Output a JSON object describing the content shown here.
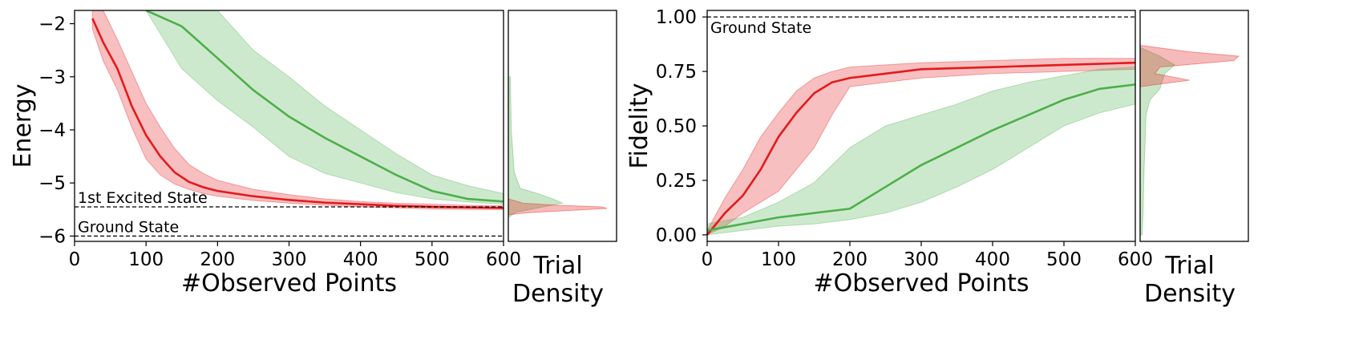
{
  "chart_data": [
    {
      "type": "line",
      "panel": "energy",
      "xlabel": "#Observed Points",
      "ylabel": "Energy",
      "xlim": [
        0,
        600
      ],
      "ylim": [
        -6.1,
        -1.75
      ],
      "xticks": [
        0,
        100,
        200,
        300,
        400,
        500,
        600
      ],
      "xtick_labels": [
        "0",
        "100",
        "200",
        "300",
        "400",
        "500",
        "600"
      ],
      "yticks": [
        -2,
        -3,
        -4,
        -5,
        -6
      ],
      "ytick_labels": [
        "−2",
        "−3",
        "−4",
        "−5",
        "−6"
      ],
      "reference_lines": [
        {
          "label": "1st Excited State",
          "y": -5.45
        },
        {
          "label": "Ground State",
          "y": -6.0
        }
      ],
      "series": [
        {
          "name": "red",
          "color": "#e41a1c",
          "x": [
            25,
            40,
            60,
            80,
            100,
            120,
            140,
            160,
            180,
            200,
            250,
            300,
            350,
            400,
            450,
            500,
            550,
            600
          ],
          "mean": [
            -1.9,
            -2.35,
            -2.85,
            -3.55,
            -4.1,
            -4.5,
            -4.8,
            -4.98,
            -5.08,
            -5.15,
            -5.25,
            -5.32,
            -5.37,
            -5.4,
            -5.43,
            -5.45,
            -5.46,
            -5.47
          ],
          "lower": [
            -2.1,
            -2.7,
            -3.25,
            -3.95,
            -4.55,
            -4.85,
            -5.02,
            -5.12,
            -5.2,
            -5.25,
            -5.33,
            -5.38,
            -5.42,
            -5.45,
            -5.47,
            -5.49,
            -5.5,
            -5.5
          ],
          "upper": [
            -1.75,
            -1.75,
            -2.3,
            -2.9,
            -3.5,
            -3.95,
            -4.35,
            -4.65,
            -4.82,
            -4.95,
            -5.12,
            -5.22,
            -5.3,
            -5.35,
            -5.38,
            -5.4,
            -5.42,
            -5.43
          ]
        },
        {
          "name": "green",
          "color": "#4daf4a",
          "x": [
            100,
            150,
            200,
            250,
            300,
            350,
            400,
            450,
            500,
            550,
            600
          ],
          "mean": [
            -1.75,
            -2.05,
            -2.65,
            -3.25,
            -3.75,
            -4.15,
            -4.5,
            -4.85,
            -5.15,
            -5.3,
            -5.35
          ],
          "lower": [
            -1.75,
            -2.85,
            -3.45,
            -3.95,
            -4.5,
            -4.82,
            -5.0,
            -5.18,
            -5.3,
            -5.36,
            -5.4
          ],
          "upper": [
            -1.75,
            -1.75,
            -1.75,
            -2.5,
            -3.0,
            -3.55,
            -4.0,
            -4.45,
            -4.85,
            -5.05,
            -5.2
          ]
        }
      ],
      "density": {
        "label_line1": "Trial",
        "label_line2": "Density",
        "red": {
          "y": [
            -5.3,
            -5.38,
            -5.42,
            -5.45,
            -5.48,
            -5.52,
            -5.56,
            -5.6
          ],
          "d": [
            0.0,
            0.15,
            0.5,
            0.95,
            1.0,
            0.6,
            0.2,
            0.0
          ]
        },
        "green": {
          "y": [
            -3.0,
            -4.0,
            -4.8,
            -5.1,
            -5.2,
            -5.3,
            -5.38,
            -5.45,
            -5.55,
            -5.65
          ],
          "d": [
            0.02,
            0.03,
            0.06,
            0.12,
            0.3,
            0.45,
            0.55,
            0.35,
            0.08,
            0.0
          ]
        }
      }
    },
    {
      "type": "line",
      "panel": "fidelity",
      "xlabel": "#Observed Points",
      "ylabel": "Fidelity",
      "xlim": [
        0,
        600
      ],
      "ylim": [
        -0.03,
        1.03
      ],
      "xticks": [
        0,
        100,
        200,
        300,
        400,
        500,
        600
      ],
      "xtick_labels": [
        "0",
        "100",
        "200",
        "300",
        "400",
        "500",
        "600"
      ],
      "yticks": [
        0,
        0.25,
        0.5,
        0.75,
        1.0
      ],
      "ytick_labels": [
        "0.00",
        "0.25",
        "0.50",
        "0.75",
        "1.00"
      ],
      "reference_lines": [
        {
          "label": "Ground State",
          "y": 1.0
        }
      ],
      "series": [
        {
          "name": "red",
          "color": "#e41a1c",
          "x": [
            0,
            25,
            50,
            75,
            100,
            125,
            150,
            175,
            200,
            250,
            300,
            400,
            500,
            600
          ],
          "mean": [
            0.0,
            0.1,
            0.18,
            0.3,
            0.45,
            0.56,
            0.65,
            0.7,
            0.72,
            0.74,
            0.76,
            0.77,
            0.78,
            0.79
          ],
          "lower": [
            0.0,
            0.04,
            0.1,
            0.15,
            0.2,
            0.3,
            0.4,
            0.55,
            0.68,
            0.7,
            0.72,
            0.74,
            0.75,
            0.76
          ],
          "upper": [
            0.02,
            0.17,
            0.3,
            0.45,
            0.56,
            0.66,
            0.72,
            0.75,
            0.77,
            0.78,
            0.79,
            0.8,
            0.81,
            0.81
          ]
        },
        {
          "name": "green",
          "color": "#4daf4a",
          "x": [
            0,
            50,
            100,
            150,
            200,
            250,
            300,
            350,
            400,
            450,
            500,
            550,
            600
          ],
          "mean": [
            0.02,
            0.05,
            0.08,
            0.1,
            0.12,
            0.22,
            0.32,
            0.4,
            0.48,
            0.55,
            0.62,
            0.67,
            0.69
          ],
          "lower": [
            0.0,
            0.02,
            0.04,
            0.05,
            0.07,
            0.1,
            0.15,
            0.22,
            0.3,
            0.4,
            0.5,
            0.56,
            0.6
          ],
          "upper": [
            0.05,
            0.08,
            0.15,
            0.24,
            0.4,
            0.5,
            0.55,
            0.6,
            0.66,
            0.7,
            0.73,
            0.76,
            0.77
          ]
        }
      ],
      "density": {
        "label_line1": "Trial",
        "label_line2": "Density",
        "red": {
          "y": [
            0.68,
            0.71,
            0.74,
            0.77,
            0.8,
            0.82,
            0.84,
            0.87
          ],
          "d": [
            0.0,
            0.5,
            0.15,
            0.2,
            0.95,
            1.0,
            0.5,
            0.0
          ]
        },
        "green": {
          "y": [
            0.0,
            0.1,
            0.3,
            0.55,
            0.62,
            0.67,
            0.7,
            0.74,
            0.78,
            0.82,
            0.86
          ],
          "d": [
            0.02,
            0.03,
            0.04,
            0.06,
            0.1,
            0.2,
            0.22,
            0.25,
            0.35,
            0.2,
            0.0
          ]
        }
      }
    }
  ]
}
